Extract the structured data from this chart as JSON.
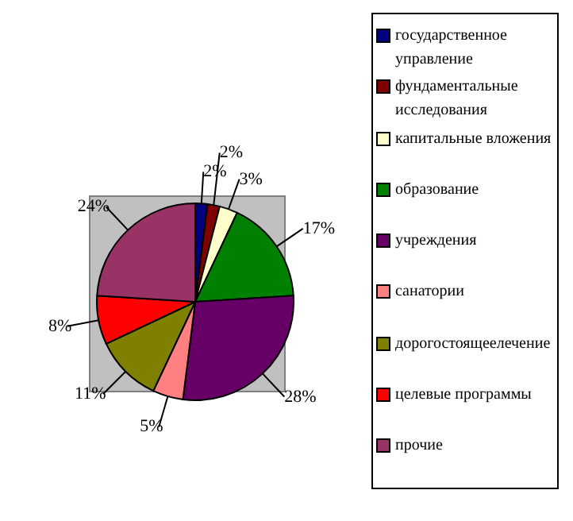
{
  "chart_data": {
    "type": "pie",
    "categories": [
      "государственное управление",
      "фундаментальные исследования",
      "капитальные вложения",
      "образование",
      "учреждения",
      "санатории",
      "дорогостоящеелечение",
      "целевые программы",
      "прочие"
    ],
    "values": [
      2,
      2,
      3,
      17,
      28,
      5,
      11,
      8,
      24
    ],
    "value_labels": [
      "2%",
      "2%",
      "3%",
      "17%",
      "28%",
      "5%",
      "11%",
      "8%",
      "24%"
    ],
    "colors": [
      "#000080",
      "#800000",
      "#ffffcc",
      "#008000",
      "#660066",
      "#ff8080",
      "#808000",
      "#ff0000",
      "#993366"
    ],
    "legend": "right"
  }
}
